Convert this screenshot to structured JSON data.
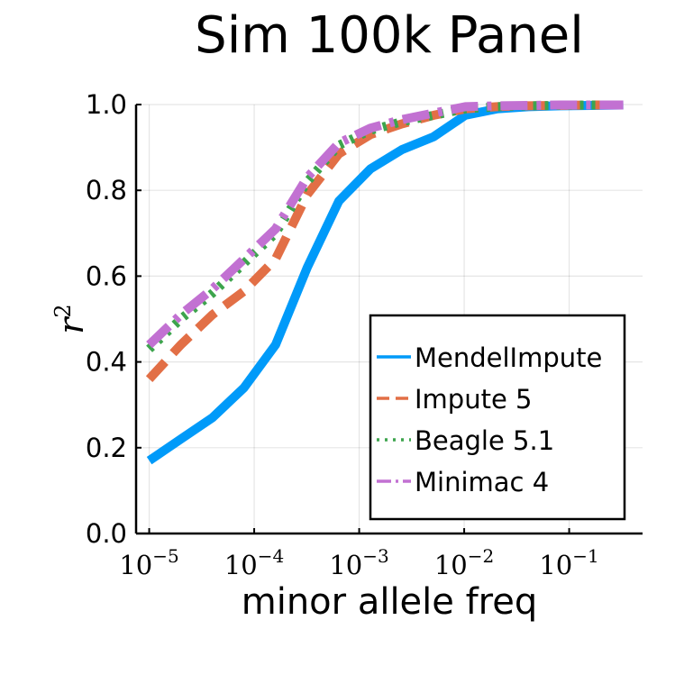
{
  "chart_data": {
    "type": "line",
    "title": "Sim 100k Panel",
    "xlabel": "minor allele freq",
    "ylabel": "r",
    "ylabel_superscript": "2",
    "xscale": "log",
    "xlim": [
      7.5e-06,
      0.5
    ],
    "ylim": [
      0,
      1
    ],
    "xticks": [
      {
        "value": 1e-05,
        "base": "10",
        "exp": "−5"
      },
      {
        "value": 0.0001,
        "base": "10",
        "exp": "−4"
      },
      {
        "value": 0.001,
        "base": "10",
        "exp": "−3"
      },
      {
        "value": 0.01,
        "base": "10",
        "exp": "−2"
      },
      {
        "value": 0.1,
        "base": "10",
        "exp": "−1"
      }
    ],
    "yticks": [
      "0.0",
      "0.2",
      "0.4",
      "0.6",
      "0.8",
      "1.0"
    ],
    "grid": true,
    "legend_position": "bottom-right",
    "series": [
      {
        "name": "MendelImpute",
        "color": "#009af9",
        "dash": "solid",
        "x": [
          1e-05,
          2e-05,
          4e-05,
          8e-05,
          0.00016,
          0.00032,
          0.00064,
          0.00128,
          0.00256,
          0.00512,
          0.01024,
          0.02048,
          0.04096,
          0.08192,
          0.16384,
          0.32768
        ],
        "y": [
          0.17,
          0.22,
          0.27,
          0.34,
          0.44,
          0.62,
          0.775,
          0.85,
          0.895,
          0.925,
          0.975,
          0.99,
          0.995,
          0.997,
          0.998,
          0.999
        ]
      },
      {
        "name": "Impute 5",
        "color": "#e26f46",
        "dash": "dashed",
        "x": [
          1e-05,
          2e-05,
          4e-05,
          8e-05,
          0.00016,
          0.00032,
          0.00064,
          0.00128,
          0.00256,
          0.00512,
          0.01024,
          0.02048,
          0.04096,
          0.08192,
          0.16384,
          0.32768
        ],
        "y": [
          0.36,
          0.44,
          0.51,
          0.565,
          0.64,
          0.79,
          0.885,
          0.93,
          0.955,
          0.975,
          0.99,
          0.995,
          0.997,
          0.998,
          0.999,
          0.999
        ]
      },
      {
        "name": "Beagle 5.1",
        "color": "#3da44d",
        "dash": "dotted",
        "x": [
          1e-05,
          2e-05,
          4e-05,
          8e-05,
          0.00016,
          0.00032,
          0.00064,
          0.00128,
          0.00256,
          0.00512,
          0.01024,
          0.02048,
          0.04096,
          0.08192,
          0.16384,
          0.32768
        ],
        "y": [
          0.43,
          0.5,
          0.56,
          0.63,
          0.7,
          0.82,
          0.905,
          0.94,
          0.96,
          0.975,
          0.99,
          0.995,
          0.997,
          0.998,
          0.999,
          0.999
        ]
      },
      {
        "name": "Minimac 4",
        "color": "#c271d2",
        "dash": "dashdot",
        "x": [
          1e-05,
          2e-05,
          4e-05,
          8e-05,
          0.00016,
          0.00032,
          0.00064,
          0.00128,
          0.00256,
          0.00512,
          0.01024,
          0.02048,
          0.04096,
          0.08192,
          0.16384,
          0.32768
        ],
        "y": [
          0.44,
          0.51,
          0.57,
          0.64,
          0.71,
          0.83,
          0.91,
          0.945,
          0.965,
          0.98,
          0.995,
          0.997,
          0.998,
          0.999,
          0.999,
          0.999
        ]
      }
    ]
  }
}
